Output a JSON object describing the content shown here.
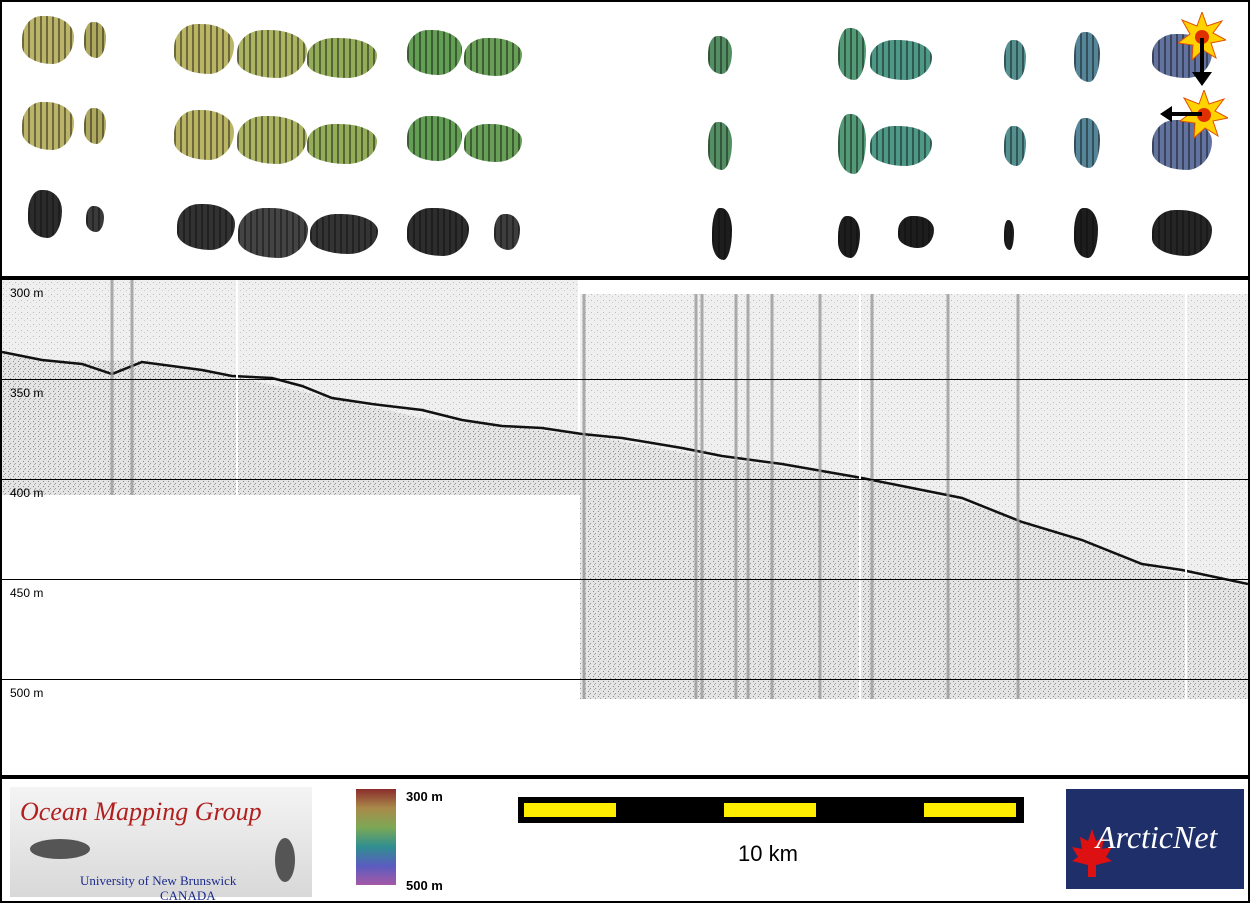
{
  "depth_axis": {
    "labels": [
      "300 m",
      "350 m",
      "400 m",
      "450 m",
      "500 m"
    ]
  },
  "legend": {
    "organization": {
      "title": "Ocean Mapping Group",
      "university": "University of New Brunswick",
      "country": "CANADA"
    },
    "colorbar": {
      "top_label": "300 m",
      "bottom_label": "500 m"
    },
    "scale_bar": {
      "label": "10 km"
    },
    "partner_logo": {
      "text": "ArcticNet"
    }
  },
  "colors": {
    "frame": "#000000",
    "scale_fill": "#ffee00",
    "omg_title": "#b21f1f",
    "arctic_bg": "#1e2f6a"
  },
  "icons": [
    "sun-icon",
    "arrow-down-icon",
    "arrow-left-icon",
    "maple-leaf-icon"
  ]
}
